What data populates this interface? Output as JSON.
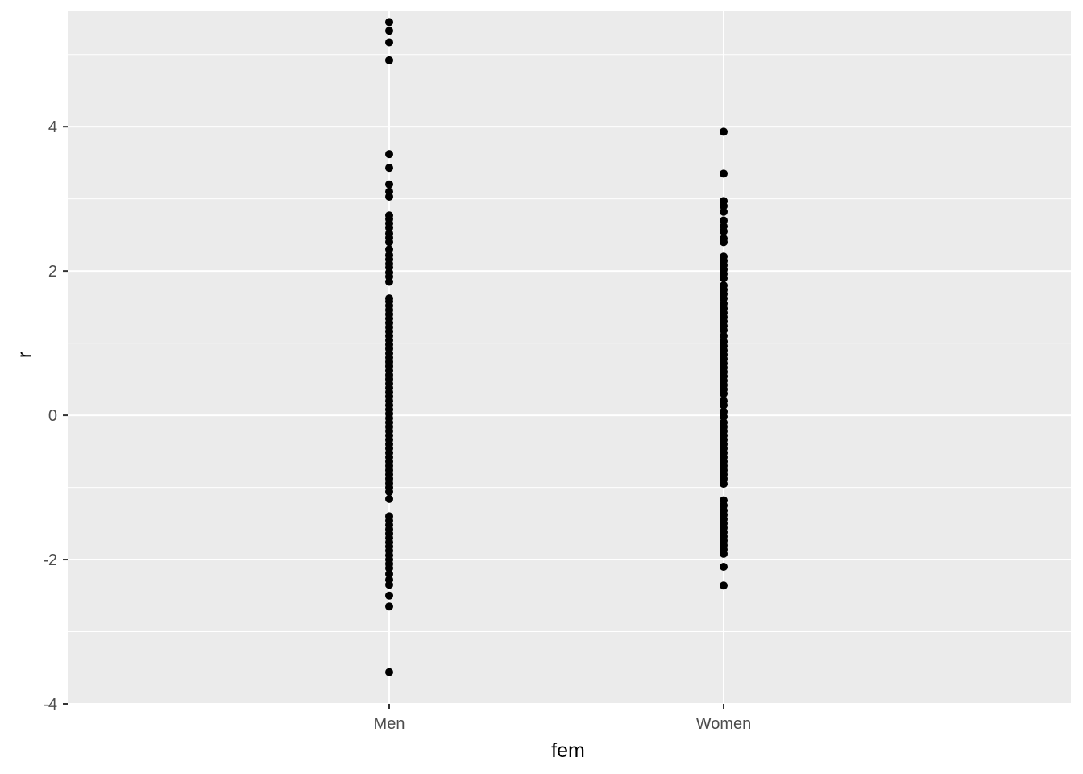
{
  "chart_data": {
    "type": "scatter",
    "title": "",
    "xlabel": "fem",
    "ylabel": "r",
    "categories": [
      "Men",
      "Women"
    ],
    "ylim": [
      -4,
      5.6
    ],
    "y_ticks": [
      -4,
      -2,
      0,
      2,
      4
    ],
    "y_tick_labels": [
      "-4",
      "-2",
      "0",
      "2",
      "4"
    ],
    "grid": true,
    "legend": "none",
    "colors": {
      "panel": "#EBEBEB",
      "grid": "#FFFFFF",
      "point": "#000000",
      "tick": "#333333"
    },
    "series": [
      {
        "category": "Men",
        "y": [
          5.45,
          5.33,
          5.17,
          4.92,
          3.62,
          3.43,
          3.2,
          3.1,
          3.03,
          2.77,
          2.72,
          2.66,
          2.6,
          2.52,
          2.46,
          2.4,
          2.3,
          2.22,
          2.16,
          2.1,
          2.05,
          1.98,
          1.92,
          1.85,
          1.62,
          1.58,
          1.52,
          1.46,
          1.4,
          1.34,
          1.28,
          1.22,
          1.16,
          1.1,
          1.04,
          0.98,
          0.92,
          0.86,
          0.8,
          0.74,
          0.68,
          0.62,
          0.56,
          0.5,
          0.44,
          0.38,
          0.32,
          0.26,
          0.2,
          0.14,
          0.08,
          0.02,
          -0.04,
          -0.1,
          -0.16,
          -0.22,
          -0.28,
          -0.34,
          -0.4,
          -0.46,
          -0.52,
          -0.58,
          -0.64,
          -0.7,
          -0.76,
          -0.82,
          -0.88,
          -0.94,
          -1.0,
          -1.06,
          -1.16,
          -1.4,
          -1.46,
          -1.52,
          -1.58,
          -1.64,
          -1.7,
          -1.76,
          -1.82,
          -1.88,
          -1.94,
          -2.0,
          -2.06,
          -2.12,
          -2.2,
          -2.28,
          -2.35,
          -2.5,
          -2.65,
          -3.56
        ]
      },
      {
        "category": "Women",
        "y": [
          3.93,
          3.35,
          2.97,
          2.9,
          2.82,
          2.7,
          2.62,
          2.55,
          2.45,
          2.4,
          2.2,
          2.14,
          2.08,
          2.02,
          1.96,
          1.9,
          1.8,
          1.74,
          1.68,
          1.62,
          1.55,
          1.48,
          1.42,
          1.36,
          1.3,
          1.24,
          1.18,
          1.1,
          1.02,
          0.96,
          0.9,
          0.84,
          0.78,
          0.72,
          0.66,
          0.6,
          0.54,
          0.48,
          0.42,
          0.36,
          0.3,
          0.2,
          0.14,
          0.05,
          -0.02,
          -0.1,
          -0.16,
          -0.22,
          -0.28,
          -0.34,
          -0.4,
          -0.46,
          -0.52,
          -0.58,
          -0.64,
          -0.7,
          -0.76,
          -0.82,
          -0.88,
          -0.95,
          -1.18,
          -1.25,
          -1.32,
          -1.38,
          -1.44,
          -1.5,
          -1.56,
          -1.62,
          -1.68,
          -1.74,
          -1.8,
          -1.86,
          -1.92,
          -2.1,
          -2.36
        ]
      }
    ]
  }
}
